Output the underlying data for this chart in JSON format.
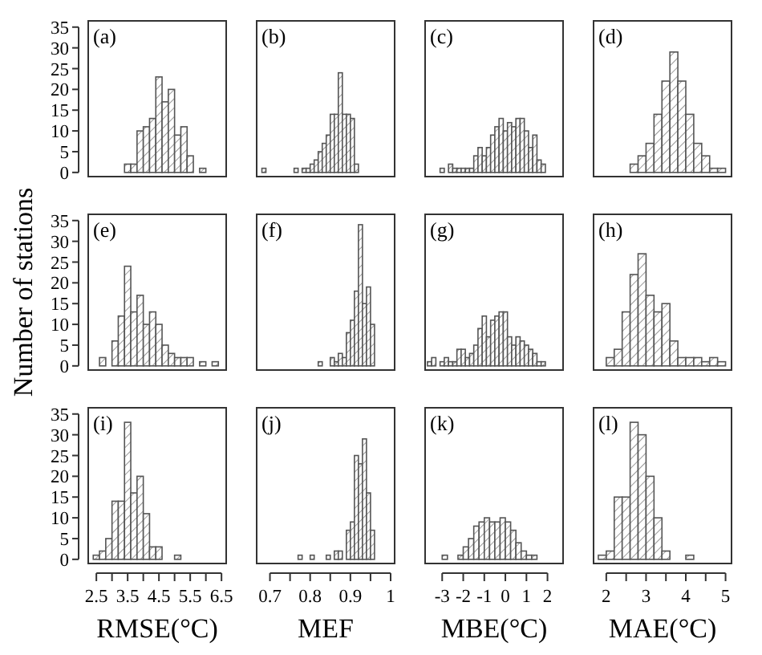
{
  "chart_data": [
    {
      "type": "histogram",
      "title": "(a)",
      "bins": [
        3.4,
        3.6,
        3.8,
        4.0,
        4.2,
        4.4,
        4.6,
        4.8,
        5.0,
        5.2,
        5.4,
        5.6,
        5.8,
        6.0
      ],
      "values": [
        2,
        2,
        10,
        11,
        13,
        23,
        17,
        20,
        9,
        11,
        4,
        0,
        1
      ],
      "color": "#555555",
      "xlim": [
        2.24,
        6.65
      ],
      "ylim": [
        -1,
        36.5
      ],
      "yticks": [
        0,
        5,
        10,
        15,
        20,
        25,
        30,
        35
      ],
      "tick_labels": "y"
    },
    {
      "type": "histogram",
      "title": "(b)",
      "bins": [
        0.68,
        0.69,
        0.7,
        0.71,
        0.72,
        0.73,
        0.74,
        0.75,
        0.76,
        0.77,
        0.78,
        0.79,
        0.8,
        0.81,
        0.82,
        0.83,
        0.84,
        0.85,
        0.86,
        0.87,
        0.88,
        0.89,
        0.9,
        0.91,
        0.92
      ],
      "values": [
        1,
        0,
        0,
        0,
        0,
        0,
        0,
        0,
        1,
        0,
        1,
        1,
        2,
        3,
        5,
        7,
        9,
        14,
        14,
        24,
        14,
        14,
        13,
        2
      ],
      "color": "#555555",
      "xlim": [
        0.667,
        1.01
      ],
      "ylim": [
        -1,
        36.5
      ],
      "tick_labels": false
    },
    {
      "type": "histogram",
      "title": "(c)",
      "bins": [
        -3.1,
        -2.9,
        -2.7,
        -2.5,
        -2.3,
        -2.1,
        -1.9,
        -1.7,
        -1.5,
        -1.3,
        -1.1,
        -0.9,
        -0.7,
        -0.5,
        -0.3,
        -0.1,
        0.1,
        0.3,
        0.5,
        0.7,
        0.9,
        1.1,
        1.3,
        1.5,
        1.7,
        1.9
      ],
      "values": [
        1,
        0,
        2,
        1,
        1,
        1,
        1,
        1,
        4,
        6,
        4,
        6,
        9,
        11,
        13,
        10,
        12,
        11,
        13,
        13,
        10,
        6,
        9,
        3,
        2
      ],
      "color": "#555555",
      "xlim": [
        -3.81,
        2.74
      ],
      "ylim": [
        -1,
        36.5
      ],
      "tick_labels": false
    },
    {
      "type": "histogram",
      "title": "(d)",
      "bins": [
        2.6,
        2.8,
        3.0,
        3.2,
        3.4,
        3.6,
        3.8,
        4.0,
        4.2,
        4.4,
        4.6,
        4.8,
        5.0
      ],
      "values": [
        2,
        4,
        7,
        14,
        22,
        29,
        22,
        14,
        7,
        4,
        1,
        1
      ],
      "color": "#555555",
      "xlim": [
        1.68,
        5.15
      ],
      "ylim": [
        -1,
        36.5
      ],
      "tick_labels": false
    },
    {
      "type": "histogram",
      "title": "(e)",
      "bins": [
        2.6,
        2.8,
        3.0,
        3.2,
        3.4,
        3.6,
        3.8,
        4.0,
        4.2,
        4.4,
        4.6,
        4.8,
        5.0,
        5.2,
        5.4,
        5.6,
        5.8,
        6.0,
        6.2,
        6.4
      ],
      "values": [
        2,
        0,
        6,
        12,
        24,
        13,
        17,
        10,
        13,
        10,
        5,
        3,
        2,
        2,
        2,
        0,
        1,
        0,
        1
      ],
      "color": "#555555",
      "xlim": [
        2.24,
        6.65
      ],
      "ylim": [
        -1,
        36.5
      ],
      "yticks": [
        0,
        5,
        10,
        15,
        20,
        25,
        30,
        35
      ],
      "tick_labels": "y",
      "ylabel": "Number of stations"
    },
    {
      "type": "histogram",
      "title": "(f)",
      "bins": [
        0.79,
        0.8,
        0.81,
        0.82,
        0.83,
        0.84,
        0.85,
        0.86,
        0.87,
        0.88,
        0.89,
        0.9,
        0.91,
        0.92,
        0.93,
        0.94,
        0.95,
        0.96
      ],
      "values": [
        0,
        0,
        0,
        1,
        0,
        0,
        2,
        1,
        3,
        2,
        8,
        11,
        18,
        34,
        15,
        19,
        10
      ],
      "color": "#555555",
      "xlim": [
        0.667,
        1.01
      ],
      "ylim": [
        -1,
        36.5
      ],
      "tick_labels": false
    },
    {
      "type": "histogram",
      "title": "(g)",
      "bins": [
        -3.7,
        -3.5,
        -3.3,
        -3.1,
        -2.9,
        -2.7,
        -2.5,
        -2.3,
        -2.1,
        -1.9,
        -1.7,
        -1.5,
        -1.3,
        -1.1,
        -0.9,
        -0.7,
        -0.5,
        -0.3,
        -0.1,
        0.1,
        0.3,
        0.5,
        0.7,
        0.9,
        1.1,
        1.3,
        1.5,
        1.7,
        1.9
      ],
      "values": [
        1,
        2,
        0,
        1,
        2,
        1,
        1,
        4,
        4,
        2,
        3,
        5,
        9,
        12,
        7,
        11,
        12,
        13,
        13,
        7,
        5,
        7,
        6,
        5,
        4,
        3,
        1,
        1
      ],
      "color": "#555555",
      "xlim": [
        -3.81,
        2.74
      ],
      "ylim": [
        -1,
        36.5
      ],
      "tick_labels": false
    },
    {
      "type": "histogram",
      "title": "(h)",
      "bins": [
        2.0,
        2.2,
        2.4,
        2.6,
        2.8,
        3.0,
        3.2,
        3.4,
        3.6,
        3.8,
        4.0,
        4.2,
        4.4,
        4.6,
        4.8,
        5.0
      ],
      "values": [
        2,
        4,
        13,
        22,
        27,
        17,
        13,
        15,
        6,
        2,
        2,
        2,
        1,
        2,
        1
      ],
      "color": "#555555",
      "xlim": [
        1.68,
        5.15
      ],
      "ylim": [
        -1,
        36.5
      ],
      "tick_labels": false
    },
    {
      "type": "histogram",
      "title": "(i)",
      "bins": [
        2.4,
        2.6,
        2.8,
        3.0,
        3.2,
        3.4,
        3.6,
        3.8,
        4.0,
        4.2,
        4.4,
        4.6,
        4.8,
        5.0,
        5.2
      ],
      "values": [
        1,
        2,
        5,
        14,
        14,
        33,
        16,
        20,
        11,
        3,
        3,
        0,
        0,
        1
      ],
      "color": "#555555",
      "xlim": [
        2.24,
        6.65
      ],
      "ylim": [
        -1,
        36.5
      ],
      "yticks": [
        0,
        5,
        10,
        15,
        20,
        25,
        30,
        35
      ],
      "xticks": [
        2.5,
        {
          "value": 3,
          "label": null
        },
        3.5,
        {
          "value": 4,
          "label": null
        },
        4.5,
        {
          "value": 5,
          "label": null
        },
        5.5,
        {
          "value": 6,
          "label": null
        },
        6.5
      ],
      "xlabel": "RMSE(°C)"
    },
    {
      "type": "histogram",
      "title": "(j)",
      "bins": [
        0.77,
        0.78,
        0.79,
        0.8,
        0.81,
        0.82,
        0.83,
        0.84,
        0.85,
        0.86,
        0.87,
        0.88,
        0.89,
        0.9,
        0.91,
        0.92,
        0.93,
        0.94,
        0.95,
        0.96
      ],
      "values": [
        1,
        0,
        0,
        1,
        0,
        0,
        0,
        1,
        0,
        2,
        2,
        0,
        7,
        9,
        25,
        23,
        29,
        16,
        7
      ],
      "color": "#555555",
      "xlim": [
        0.667,
        1.01
      ],
      "ylim": [
        -1,
        36.5
      ],
      "xticks": [
        0.7,
        {
          "value": 0.75,
          "label": null
        },
        0.8,
        {
          "value": 0.85,
          "label": null
        },
        0.9,
        {
          "value": 0.95,
          "label": null
        },
        1
      ],
      "tick_labels": "x",
      "xlabel": "MEF"
    },
    {
      "type": "histogram",
      "title": "(k)",
      "bins": [
        -3.0,
        -2.75,
        -2.5,
        -2.25,
        -2.0,
        -1.75,
        -1.5,
        -1.25,
        -1.0,
        -0.75,
        -0.5,
        -0.25,
        0,
        0.25,
        0.5,
        0.75,
        1.0,
        1.25,
        1.5
      ],
      "values": [
        1,
        0,
        0,
        1,
        3,
        5,
        8,
        9,
        10,
        9,
        9,
        10,
        9,
        7,
        4,
        2,
        1,
        1
      ],
      "color": "#555555",
      "xlim": [
        -3.81,
        2.74
      ],
      "ylim": [
        -1,
        36.5
      ],
      "xticks": [
        -3,
        -2,
        -1,
        0,
        1,
        2
      ],
      "tick_labels": "x",
      "xlabel": "MBE(°C)"
    },
    {
      "type": "histogram",
      "title": "(l)",
      "bins": [
        1.8,
        2.0,
        2.2,
        2.4,
        2.6,
        2.8,
        3.0,
        3.2,
        3.4,
        3.6,
        3.8,
        4.0,
        4.2
      ],
      "values": [
        1,
        2,
        15,
        15,
        33,
        30,
        20,
        10,
        2,
        0,
        0,
        1
      ],
      "color": "#555555",
      "xlim": [
        1.68,
        5.15
      ],
      "ylim": [
        -1,
        36.5
      ],
      "xticks": [
        2,
        {
          "value": 2.5,
          "label": null
        },
        3,
        {
          "value": 3.5,
          "label": null
        },
        4,
        {
          "value": 4.5,
          "label": null
        },
        5
      ],
      "tick_labels": "x",
      "xlabel": "MAE(°C)"
    }
  ]
}
